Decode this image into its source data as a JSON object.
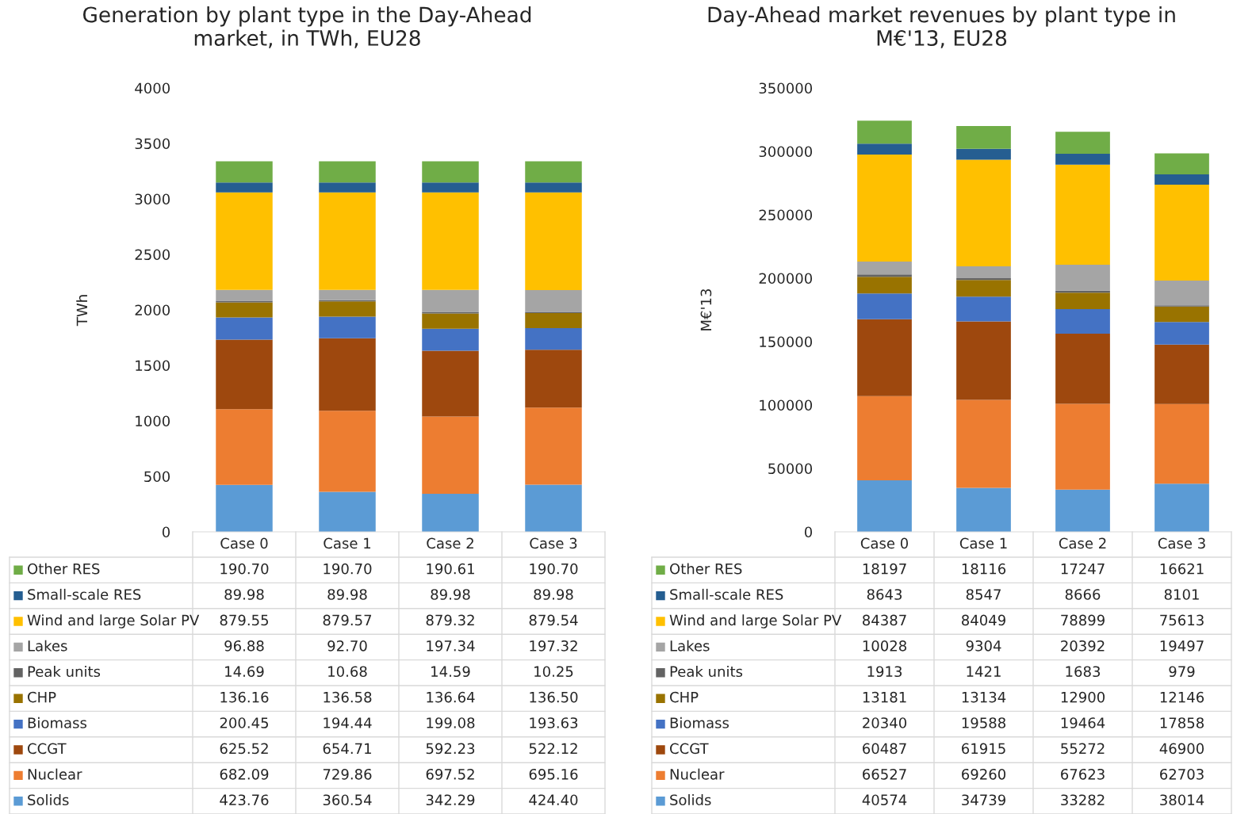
{
  "chart_data": [
    {
      "type": "bar",
      "title": "Generation by plant type in the Day-Ahead\nmarket, in TWh, EU28",
      "ylabel": "TWh",
      "categories": [
        "Case 0",
        "Case 1",
        "Case 2",
        "Case 3"
      ],
      "stacked": true,
      "ylim": [
        0,
        4000
      ],
      "yticks": [
        0,
        500,
        1000,
        1500,
        2000,
        2500,
        3000,
        3500,
        4000
      ],
      "legend": "bottom",
      "grid": false,
      "series": [
        {
          "name": "Solids",
          "color": "#5b9bd5",
          "values": [
            423.76,
            360.54,
            342.29,
            424.4
          ],
          "value_labels": [
            "423.76",
            "360.54",
            "342.29",
            "424.40"
          ]
        },
        {
          "name": "Nuclear",
          "color": "#ed7d31",
          "values": [
            682.09,
            729.86,
            697.52,
            695.16
          ],
          "value_labels": [
            "682.09",
            "729.86",
            "697.52",
            "695.16"
          ]
        },
        {
          "name": "CCGT",
          "color": "#9e480e",
          "values": [
            625.52,
            654.71,
            592.23,
            522.12
          ],
          "value_labels": [
            "625.52",
            "654.71",
            "592.23",
            "522.12"
          ]
        },
        {
          "name": "Biomass",
          "color": "#4472c4",
          "values": [
            200.45,
            194.44,
            199.08,
            193.63
          ],
          "value_labels": [
            "200.45",
            "194.44",
            "199.08",
            "193.63"
          ]
        },
        {
          "name": "CHP",
          "color": "#997300",
          "values": [
            136.16,
            136.58,
            136.64,
            136.5
          ],
          "value_labels": [
            "136.16",
            "136.58",
            "136.64",
            "136.50"
          ]
        },
        {
          "name": "Peak units",
          "color": "#636363",
          "values": [
            14.69,
            10.68,
            14.59,
            10.25
          ],
          "value_labels": [
            "14.69",
            "10.68",
            "14.59",
            "10.25"
          ]
        },
        {
          "name": "Lakes",
          "color": "#a5a5a5",
          "values": [
            96.88,
            92.7,
            197.34,
            197.32
          ],
          "value_labels": [
            "96.88",
            "92.70",
            "197.34",
            "197.32"
          ]
        },
        {
          "name": "Wind and large Solar PV",
          "color": "#ffc000",
          "values": [
            879.55,
            879.57,
            879.32,
            879.54
          ],
          "value_labels": [
            "879.55",
            "879.57",
            "879.32",
            "879.54"
          ]
        },
        {
          "name": "Small-scale RES",
          "color": "#255e91",
          "values": [
            89.98,
            89.98,
            89.98,
            89.98
          ],
          "value_labels": [
            "89.98",
            "89.98",
            "89.98",
            "89.98"
          ]
        },
        {
          "name": "Other RES",
          "color": "#70ad47",
          "values": [
            190.7,
            190.7,
            190.61,
            190.7
          ],
          "value_labels": [
            "190.70",
            "190.70",
            "190.61",
            "190.70"
          ]
        }
      ]
    },
    {
      "type": "bar",
      "title": "Day-Ahead market revenues by plant type in\nM€'13, EU28",
      "ylabel": "M€'13",
      "categories": [
        "Case 0",
        "Case 1",
        "Case 2",
        "Case 3"
      ],
      "stacked": true,
      "ylim": [
        0,
        350000
      ],
      "yticks": [
        0,
        50000,
        100000,
        150000,
        200000,
        250000,
        300000,
        350000
      ],
      "data_labels": true,
      "legend": "bottom",
      "grid": false,
      "series": [
        {
          "name": "Solids",
          "color": "#5b9bd5",
          "values": [
            40574,
            34739,
            33282,
            38014
          ]
        },
        {
          "name": "Nuclear",
          "color": "#ed7d31",
          "values": [
            66527,
            69260,
            67623,
            62703
          ]
        },
        {
          "name": "CCGT",
          "color": "#9e480e",
          "values": [
            60487,
            61915,
            55272,
            46900
          ]
        },
        {
          "name": "Biomass",
          "color": "#4472c4",
          "values": [
            20340,
            19588,
            19464,
            17858
          ]
        },
        {
          "name": "CHP",
          "color": "#997300",
          "values": [
            13181,
            13134,
            12900,
            12146
          ]
        },
        {
          "name": "Peak units",
          "color": "#636363",
          "values": [
            1913,
            1421,
            1683,
            979
          ]
        },
        {
          "name": "Lakes",
          "color": "#a5a5a5",
          "values": [
            10028,
            9304,
            20392,
            19497
          ]
        },
        {
          "name": "Wind and large Solar PV",
          "color": "#ffc000",
          "values": [
            84387,
            84049,
            78899,
            75613
          ]
        },
        {
          "name": "Small-scale RES",
          "color": "#255e91",
          "values": [
            8643,
            8547,
            8666,
            8101
          ]
        },
        {
          "name": "Other RES",
          "color": "#70ad47",
          "values": [
            18197,
            18116,
            17247,
            16621
          ]
        }
      ]
    }
  ]
}
